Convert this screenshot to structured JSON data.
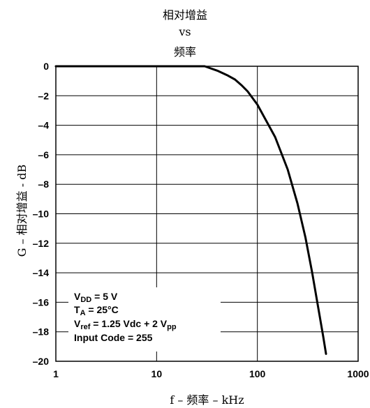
{
  "chart_data": {
    "type": "line",
    "title_lines": [
      "相对增益",
      "vs",
      "频率"
    ],
    "xlabel": "f – 频率 – kHz",
    "ylabel": "G – 相对增益 - dB",
    "x_scale": "log",
    "xlim": [
      1,
      1000
    ],
    "ylim": [
      -20,
      0
    ],
    "x_ticks": [
      "1",
      "10",
      "100",
      "1000"
    ],
    "y_ticks": [
      "0",
      "–2",
      "–4",
      "–6",
      "–8",
      "–10",
      "–12",
      "–14",
      "–16",
      "–18",
      "–20"
    ],
    "grid": true,
    "series": [
      {
        "color": "#000000",
        "x": [
          1,
          5,
          10,
          20,
          30,
          40,
          50,
          60,
          70,
          80,
          100,
          150,
          200,
          250,
          300,
          350,
          400,
          450,
          480
        ],
        "y": [
          0,
          0,
          0,
          0,
          0,
          -0.3,
          -0.6,
          -0.9,
          -1.3,
          -1.7,
          -2.6,
          -4.8,
          -7.0,
          -9.3,
          -11.6,
          -14.0,
          -16.3,
          -18.3,
          -19.5
        ]
      }
    ],
    "annotation": {
      "lines": [
        {
          "main": "V",
          "sub": "DD",
          "rest": " = 5 V"
        },
        {
          "main": "T",
          "sub": "A",
          "rest": " = 25°C"
        },
        {
          "main": "V",
          "sub": "ref",
          "rest": " = 1.25 Vdc + 2 V",
          "sub2": "pp"
        },
        {
          "main": "Input Code = 255",
          "sub": "",
          "rest": ""
        }
      ]
    }
  }
}
